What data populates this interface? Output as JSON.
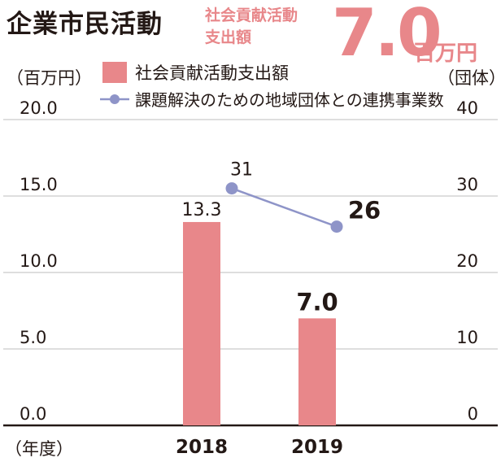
{
  "title": "企業市民活動",
  "headline": {
    "label_line1": "社会貢献活動",
    "label_line2": "支出額",
    "value": "7.0",
    "unit": "百万円",
    "color": "#e8878a"
  },
  "chart_data": {
    "type": "bar",
    "categories": [
      "2018",
      "2019"
    ],
    "series": [
      {
        "name": "社会貢献活動支出額",
        "kind": "bar",
        "axis": "left",
        "values": [
          13.3,
          7.0
        ],
        "labels": [
          "13.3",
          "7.0"
        ],
        "color": "#e8878a"
      },
      {
        "name": "課題解決のための地域団体との連携事業数",
        "kind": "line",
        "axis": "right",
        "values": [
          31,
          26
        ],
        "labels": [
          "31",
          "26"
        ],
        "color": "#8e94c8"
      }
    ],
    "left_axis": {
      "unit": "（百万円）",
      "range": [
        0,
        20
      ],
      "ticks": [
        "0.0",
        "5.0",
        "10.0",
        "15.0",
        "20.0"
      ]
    },
    "right_axis": {
      "unit": "（団体）",
      "range": [
        0,
        40
      ],
      "ticks": [
        "0",
        "10",
        "20",
        "30",
        "40"
      ]
    },
    "x_axis_unit": "（年度）",
    "grid": true
  }
}
